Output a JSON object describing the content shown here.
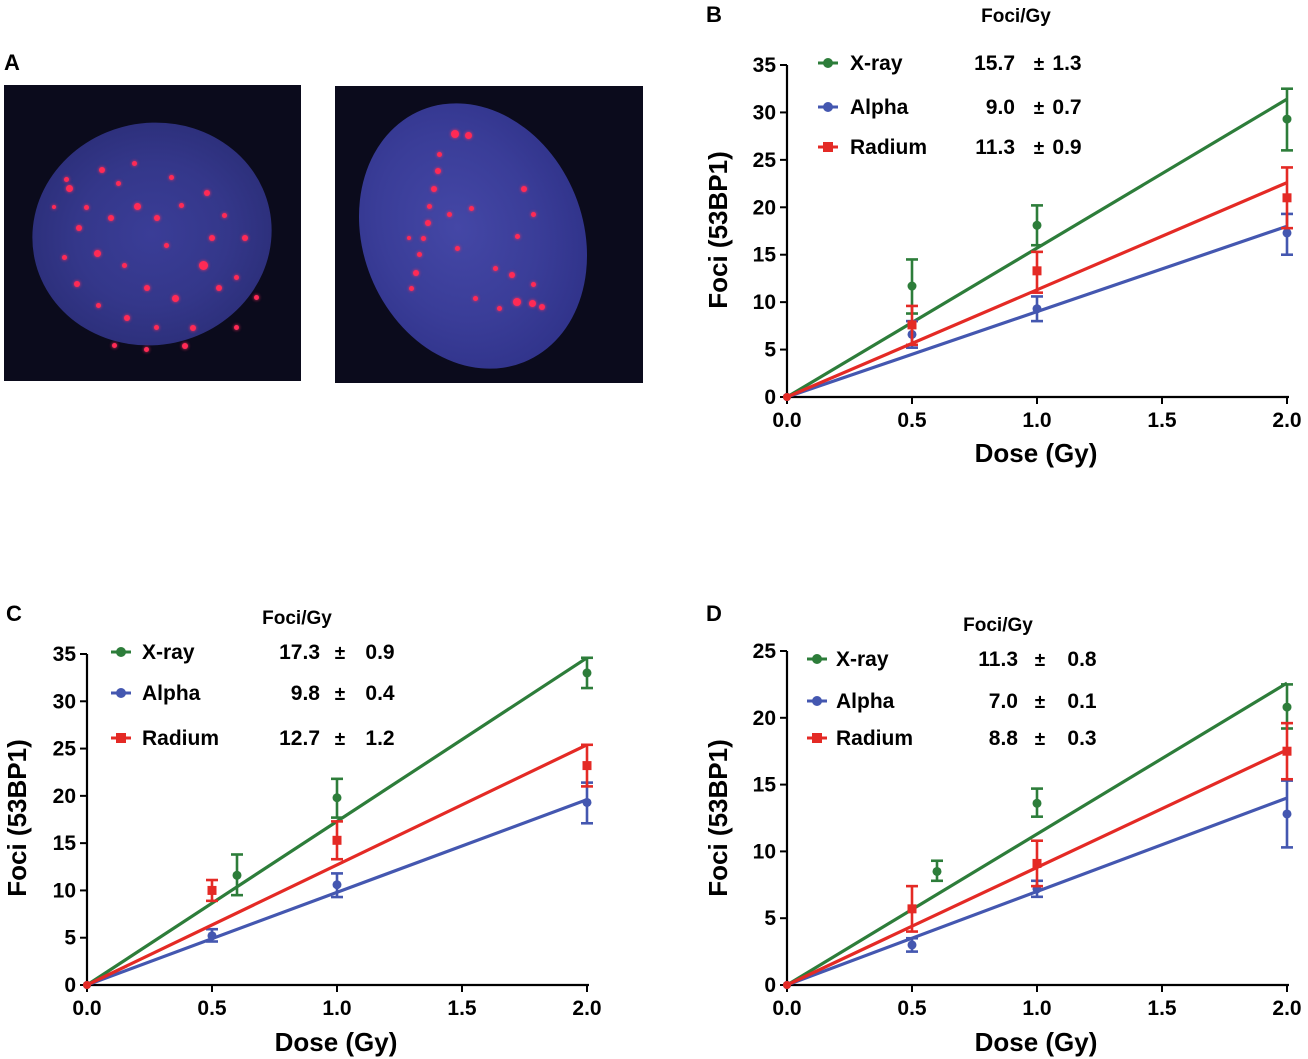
{
  "panels": {
    "a": {
      "letter": "A"
    },
    "b": {
      "letter": "B"
    },
    "c": {
      "letter": "C"
    },
    "d": {
      "letter": "D"
    }
  },
  "colors": {
    "xray": "#2d7d3a",
    "alpha": "#4457b0",
    "radium": "#e42a25"
  },
  "chart_data": [
    {
      "id": "B",
      "type": "line",
      "title": "Foci/Gy",
      "xlabel": "Dose (Gy)",
      "ylabel": "Foci (53BP1)",
      "xlim": [
        0,
        2
      ],
      "ylim": [
        0,
        35
      ],
      "xticks": [
        "0.0",
        "0.5",
        "1.0",
        "1.5",
        "2.0"
      ],
      "yticks": [
        "0",
        "5",
        "10",
        "15",
        "20",
        "25",
        "30",
        "35"
      ],
      "legend_position": "top-left",
      "series": [
        {
          "name": "X-ray",
          "key": "xray",
          "marker": "circle",
          "slope": 15.7,
          "value": "15.7",
          "pm": "±",
          "err": "1.3",
          "points": [
            {
              "x": 0.5,
              "y": 11.7,
              "lo": 8.8,
              "hi": 14.5
            },
            {
              "x": 1.0,
              "y": 18.1,
              "lo": 16.0,
              "hi": 20.2
            },
            {
              "x": 2.0,
              "y": 29.3,
              "lo": 26.0,
              "hi": 32.5
            }
          ]
        },
        {
          "name": "Alpha",
          "key": "alpha",
          "marker": "circle",
          "slope": 9.0,
          "value": "9.0",
          "pm": "±",
          "err": "0.7",
          "points": [
            {
              "x": 0.5,
              "y": 6.6,
              "lo": 5.2,
              "hi": 8.0
            },
            {
              "x": 1.0,
              "y": 9.3,
              "lo": 8.0,
              "hi": 10.6
            },
            {
              "x": 2.0,
              "y": 17.3,
              "lo": 15.0,
              "hi": 19.3
            }
          ]
        },
        {
          "name": "Radium",
          "key": "radium",
          "marker": "square",
          "slope": 11.3,
          "value": "11.3",
          "pm": "±",
          "err": "0.9",
          "points": [
            {
              "x": 0.5,
              "y": 7.6,
              "lo": 5.5,
              "hi": 9.6
            },
            {
              "x": 1.0,
              "y": 13.3,
              "lo": 11.0,
              "hi": 15.3
            },
            {
              "x": 2.0,
              "y": 21.0,
              "lo": 17.8,
              "hi": 24.2
            }
          ]
        }
      ]
    },
    {
      "id": "C",
      "type": "line",
      "title": "Foci/Gy",
      "xlabel": "Dose (Gy)",
      "ylabel": "Foci (53BP1)",
      "xlim": [
        0,
        2
      ],
      "ylim": [
        0,
        35
      ],
      "xticks": [
        "0.0",
        "0.5",
        "1.0",
        "1.5",
        "2.0"
      ],
      "yticks": [
        "0",
        "5",
        "10",
        "15",
        "20",
        "25",
        "30",
        "35"
      ],
      "legend_position": "top-left",
      "series": [
        {
          "name": "X-ray",
          "key": "xray",
          "marker": "circle",
          "slope": 17.3,
          "value": "17.3",
          "pm": "±",
          "err": "0.9",
          "points": [
            {
              "x": 0.6,
              "y": 11.6,
              "lo": 9.5,
              "hi": 13.8
            },
            {
              "x": 1.0,
              "y": 19.8,
              "lo": 17.7,
              "hi": 21.8
            },
            {
              "x": 2.0,
              "y": 33.0,
              "lo": 31.4,
              "hi": 34.6
            }
          ]
        },
        {
          "name": "Alpha",
          "key": "alpha",
          "marker": "circle",
          "slope": 9.8,
          "value": "9.8",
          "pm": "±",
          "err": "0.4",
          "points": [
            {
              "x": 0.5,
              "y": 5.2,
              "lo": 4.6,
              "hi": 5.9
            },
            {
              "x": 1.0,
              "y": 10.6,
              "lo": 9.3,
              "hi": 11.8
            },
            {
              "x": 2.0,
              "y": 19.3,
              "lo": 17.1,
              "hi": 21.4
            }
          ]
        },
        {
          "name": "Radium",
          "key": "radium",
          "marker": "square",
          "slope": 12.7,
          "value": "12.7",
          "pm": "±",
          "err": "1.2",
          "points": [
            {
              "x": 0.5,
              "y": 10.0,
              "lo": 8.9,
              "hi": 11.1
            },
            {
              "x": 1.0,
              "y": 15.3,
              "lo": 13.3,
              "hi": 17.3
            },
            {
              "x": 2.0,
              "y": 23.2,
              "lo": 21.0,
              "hi": 25.4
            }
          ]
        }
      ]
    },
    {
      "id": "D",
      "type": "line",
      "title": "Foci/Gy",
      "xlabel": "Dose (Gy)",
      "ylabel": "Foci (53BP1)",
      "xlim": [
        0,
        2
      ],
      "ylim": [
        0,
        25
      ],
      "xticks": [
        "0.0",
        "0.5",
        "1.0",
        "1.5",
        "2.0"
      ],
      "yticks": [
        "0",
        "5",
        "10",
        "15",
        "20",
        "25"
      ],
      "legend_position": "top-left",
      "series": [
        {
          "name": "X-ray",
          "key": "xray",
          "marker": "circle",
          "slope": 11.3,
          "value": "11.3",
          "pm": "±",
          "err": "0.8",
          "points": [
            {
              "x": 0.6,
              "y": 8.5,
              "lo": 7.8,
              "hi": 9.3
            },
            {
              "x": 1.0,
              "y": 13.6,
              "lo": 12.6,
              "hi": 14.7
            },
            {
              "x": 2.0,
              "y": 20.8,
              "lo": 19.2,
              "hi": 22.5
            }
          ]
        },
        {
          "name": "Alpha",
          "key": "alpha",
          "marker": "circle",
          "slope": 7.0,
          "value": "7.0",
          "pm": "±",
          "err": "0.1",
          "points": [
            {
              "x": 0.5,
              "y": 3.0,
              "lo": 2.5,
              "hi": 3.5
            },
            {
              "x": 1.0,
              "y": 7.2,
              "lo": 6.6,
              "hi": 7.8
            },
            {
              "x": 2.0,
              "y": 12.8,
              "lo": 10.3,
              "hi": 15.3
            }
          ]
        },
        {
          "name": "Radium",
          "key": "radium",
          "marker": "square",
          "slope": 8.8,
          "value": "8.8",
          "pm": "±",
          "err": "0.3",
          "points": [
            {
              "x": 0.5,
              "y": 5.7,
              "lo": 4.0,
              "hi": 7.4
            },
            {
              "x": 1.0,
              "y": 9.1,
              "lo": 7.4,
              "hi": 10.8
            },
            {
              "x": 2.0,
              "y": 17.5,
              "lo": 15.4,
              "hi": 19.6
            }
          ]
        }
      ]
    }
  ]
}
